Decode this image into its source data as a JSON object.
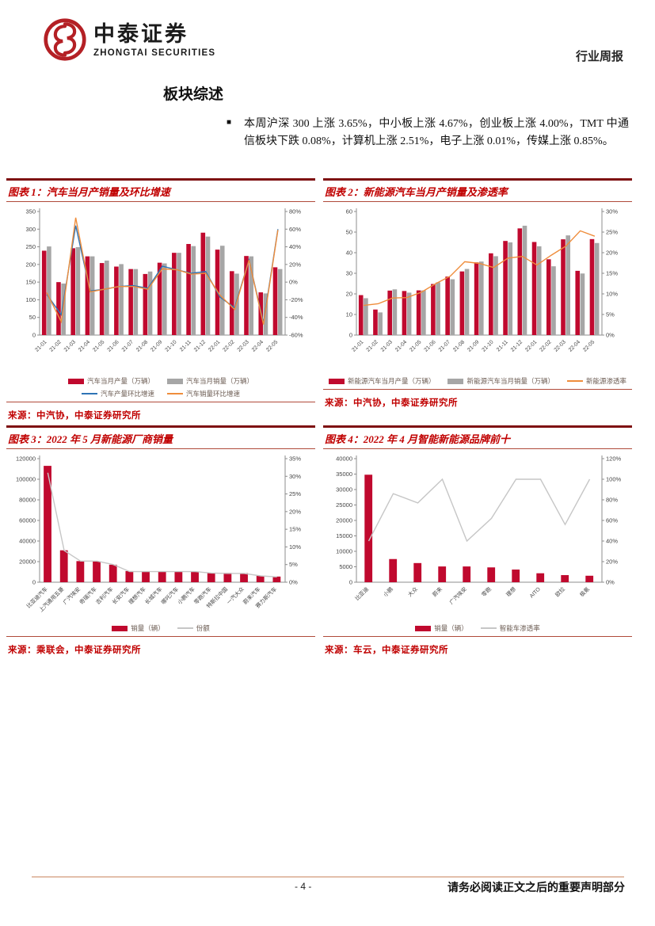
{
  "header": {
    "brand_cn": "中泰证券",
    "brand_en": "ZHONGTAI SECURITIES",
    "report_type": "行业周报"
  },
  "section": {
    "title": "板块综述",
    "bullet_marker": "■",
    "bullet": "本周沪深 300 上涨 3.65%，中小板上涨 4.67%，创业板上涨 4.00%，TMT 中通信板块下跌 0.08%，计算机上涨 2.51%，电子上涨 0.01%，传媒上涨 0.85%。"
  },
  "colors": {
    "bar_red": "#c0092e",
    "bar_gray": "#a6a6a6",
    "line_blue": "#2e74b5",
    "line_orange": "#ef8d3c",
    "line_gray": "#c6c6c6",
    "title_red": "#c00000",
    "rule_dark_red": "#7e0f10"
  },
  "footer": {
    "page": "- 4 -",
    "disclaimer": "请务必阅读正文之后的重要声明部分"
  },
  "chart_data": [
    {
      "type": "bar+line",
      "title": "图表 1：汽车当月产销量及环比增速",
      "source": "来源：中汽协，中泰证券研究所",
      "categories": [
        "21-01",
        "21-02",
        "21-03",
        "21-04",
        "21-05",
        "21-06",
        "21-07",
        "21-08",
        "21-09",
        "21-10",
        "21-11",
        "21-12",
        "22-01",
        "22-02",
        "22-03",
        "22-04",
        "22-05"
      ],
      "left_axis": {
        "min": 0,
        "max": 350,
        "step": 50,
        "format": "plain"
      },
      "right_axis": {
        "min": -60,
        "max": 80,
        "step": 20,
        "format": "percent"
      },
      "series": [
        {
          "name": "汽车当月产量（万辆）",
          "type": "bar",
          "axis": "left",
          "color": "#c0092e",
          "values": [
            239,
            150,
            246,
            223,
            204,
            194,
            187,
            173,
            205,
            233,
            258,
            290,
            242,
            181,
            224,
            121,
            192
          ]
        },
        {
          "name": "汽车当月销量（万辆）",
          "type": "bar",
          "axis": "left",
          "color": "#a6a6a6",
          "values": [
            251,
            146,
            249,
            223,
            211,
            201,
            187,
            180,
            203,
            233,
            252,
            279,
            253,
            174,
            223,
            118,
            187
          ]
        },
        {
          "name": "汽车产量环比增速",
          "type": "line",
          "axis": "right",
          "color": "#2e74b5",
          "values": [
            -14,
            -37,
            64,
            -10,
            -8,
            -5,
            -4,
            -7,
            18,
            14,
            10,
            12,
            -17,
            -29,
            25,
            -46,
            60
          ]
        },
        {
          "name": "汽车销量环比增速",
          "type": "line",
          "axis": "right",
          "color": "#ef8d3c",
          "values": [
            -12,
            -45,
            73,
            -11,
            -8,
            -5,
            -5,
            -8,
            15,
            14,
            9,
            10,
            -15,
            -31,
            25,
            -48,
            59
          ]
        }
      ]
    },
    {
      "type": "bar+line",
      "title": "图表 2：新能源汽车当月产销量及渗透率",
      "source": "来源：中汽协，中泰证券研究所",
      "categories": [
        "21-01",
        "21-02",
        "21-03",
        "21-04",
        "21-05",
        "21-06",
        "21-07",
        "21-08",
        "21-09",
        "21-10",
        "21-11",
        "21-12",
        "22-01",
        "22-02",
        "22-03",
        "22-04",
        "22-05"
      ],
      "left_axis": {
        "min": 0,
        "max": 60,
        "step": 10,
        "format": "plain"
      },
      "right_axis": {
        "min": 0,
        "max": 30,
        "step": 5,
        "format": "percent"
      },
      "series": [
        {
          "name": "新能源汽车当月产量（万辆）",
          "type": "bar",
          "axis": "left",
          "color": "#c0092e",
          "values": [
            19.4,
            12.4,
            21.6,
            21.4,
            21.7,
            24.8,
            28.4,
            30.9,
            35.3,
            39.7,
            45.7,
            51.8,
            45.2,
            36.8,
            46.5,
            31.2,
            46.6
          ]
        },
        {
          "name": "新能源汽车当月销量（万辆）",
          "type": "bar",
          "axis": "left",
          "color": "#a6a6a6",
          "values": [
            17.9,
            11.0,
            22.2,
            20.6,
            21.7,
            25.6,
            27.1,
            32.1,
            35.7,
            38.3,
            45.0,
            53.1,
            43.1,
            33.4,
            48.4,
            29.9,
            44.7
          ]
        },
        {
          "name": "新能源渗透率",
          "type": "line",
          "axis": "right",
          "color": "#ef8d3c",
          "values": [
            7.2,
            7.6,
            9.0,
            9.1,
            10.4,
            12.5,
            14.3,
            17.8,
            17.4,
            16.4,
            18.7,
            19.1,
            17.0,
            19.4,
            21.6,
            25.3,
            24.0
          ]
        }
      ]
    },
    {
      "type": "bar+line",
      "title": "图表 3：2022 年 5 月新能源厂商销量",
      "source": "来源：乘联会，中泰证券研究所",
      "categories": [
        "比亚迪汽车",
        "上汽通用五菱",
        "广汽埃安",
        "奇瑞汽车",
        "吉利汽车",
        "长安汽车",
        "理想汽车",
        "长城汽车",
        "哪吒汽车",
        "小鹏汽车",
        "零跑汽车",
        "特斯拉中国",
        "一汽大众",
        "蔚来汽车",
        "赛力斯汽车"
      ],
      "left_axis": {
        "min": 0,
        "max": 120000,
        "step": 20000,
        "format": "plain"
      },
      "right_axis": {
        "min": 0,
        "max": 35,
        "step": 5,
        "format": "percent"
      },
      "series": [
        {
          "name": "销量（辆）",
          "type": "bar",
          "axis": "left",
          "color": "#c0092e",
          "values": [
            113000,
            31000,
            20500,
            20300,
            17000,
            10800,
            10700,
            10500,
            10300,
            10000,
            9200,
            9000,
            8800,
            6200,
            5500
          ]
        },
        {
          "name": "份额",
          "type": "line",
          "axis": "right",
          "color": "#c6c6c6",
          "values": [
            31,
            9,
            6,
            6,
            5,
            3,
            3,
            3,
            3,
            3,
            2.6,
            2.5,
            2.5,
            1.8,
            1.5
          ]
        }
      ]
    },
    {
      "type": "bar+line",
      "title": "图表 4：2022 年 4 月智能新能源品牌前十",
      "source": "来源：车云，中泰证券研究所",
      "categories": [
        "比亚迪",
        "小鹏",
        "大众",
        "蔚来",
        "广汽埃安",
        "零跑",
        "理想",
        "AITO",
        "欧拉",
        "极氪"
      ],
      "left_axis": {
        "min": 0,
        "max": 40000,
        "step": 5000,
        "format": "plain"
      },
      "right_axis": {
        "min": 0,
        "max": 120,
        "step": 20,
        "format": "percent"
      },
      "series": [
        {
          "name": "销量（辆）",
          "type": "bar",
          "axis": "left",
          "color": "#c0092e",
          "values": [
            34800,
            7500,
            6200,
            5100,
            5100,
            4800,
            4100,
            2900,
            2300,
            2100
          ]
        },
        {
          "name": "智能车渗透率",
          "type": "line",
          "axis": "right",
          "color": "#c6c6c6",
          "values": [
            40,
            86,
            77,
            100,
            40,
            62,
            100,
            100,
            56,
            100
          ]
        }
      ]
    }
  ]
}
